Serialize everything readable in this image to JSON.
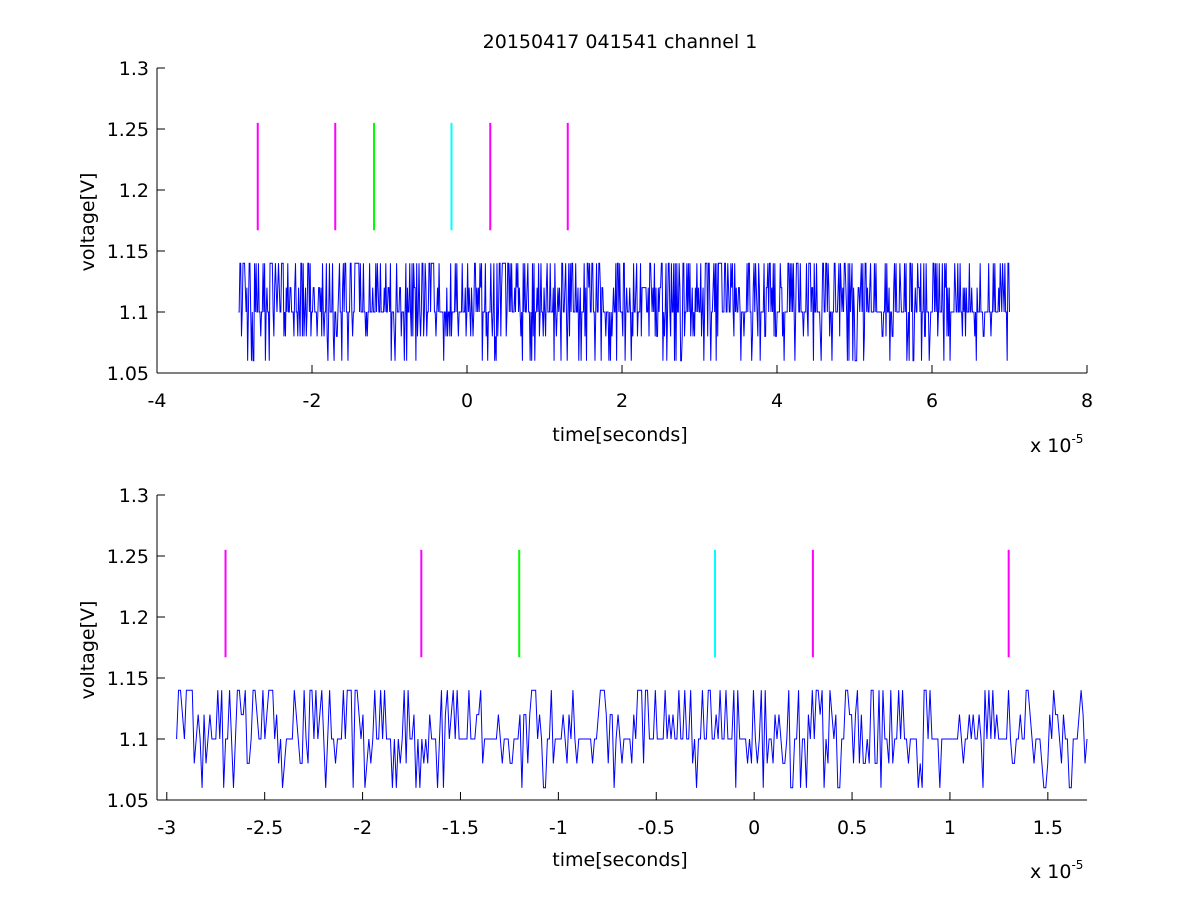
{
  "figure": {
    "title": "20150417 041541 channel 1"
  },
  "chart_data": [
    {
      "type": "line",
      "title": "20150417 041541 channel 1",
      "xlabel": "time[seconds]",
      "ylabel": "voltage[V]",
      "x_exponent_label": "x 10",
      "x_exponent": "-5",
      "xlim": [
        -4,
        8
      ],
      "ylim": [
        1.05,
        1.3
      ],
      "xticks": [
        "-4",
        "-2",
        "0",
        "2",
        "4",
        "6",
        "8"
      ],
      "yticks": [
        "1.05",
        "1.1",
        "1.15",
        "1.2",
        "1.25",
        "1.3"
      ],
      "grid": false,
      "series": [
        {
          "color": "#0000ff",
          "x_range": [
            -2.95,
            7.0
          ],
          "levels": [
            1.06,
            1.08,
            1.1,
            1.12,
            1.14
          ],
          "baseline": 1.1,
          "points_estimated": 1000
        }
      ],
      "markers": [
        {
          "x": -2.7,
          "y": [
            1.167,
            1.255
          ],
          "color": "#ff00ff"
        },
        {
          "x": -1.7,
          "y": [
            1.167,
            1.255
          ],
          "color": "#ff00ff"
        },
        {
          "x": -1.2,
          "y": [
            1.167,
            1.255
          ],
          "color": "#00ff00"
        },
        {
          "x": -0.2,
          "y": [
            1.167,
            1.255
          ],
          "color": "#00ffff"
        },
        {
          "x": 0.3,
          "y": [
            1.167,
            1.255
          ],
          "color": "#ff00ff"
        },
        {
          "x": 1.3,
          "y": [
            1.167,
            1.255
          ],
          "color": "#ff00ff"
        }
      ]
    },
    {
      "type": "line",
      "title": "",
      "xlabel": "time[seconds]",
      "ylabel": "voltage[V]",
      "x_exponent_label": "x 10",
      "x_exponent": "-5",
      "xlim": [
        -3.05,
        1.7
      ],
      "ylim": [
        1.05,
        1.3
      ],
      "xticks": [
        "-3",
        "-2.5",
        "-2",
        "-1.5",
        "-1",
        "-0.5",
        "0",
        "0.5",
        "1",
        "1.5"
      ],
      "yticks": [
        "1.05",
        "1.1",
        "1.15",
        "1.2",
        "1.25",
        "1.3"
      ],
      "grid": false,
      "series": [
        {
          "color": "#0000ff",
          "x_range": [
            -2.95,
            1.7
          ],
          "levels": [
            1.06,
            1.08,
            1.1,
            1.12,
            1.14
          ],
          "baseline": 1.1,
          "points_estimated": 465
        }
      ],
      "markers": [
        {
          "x": -2.7,
          "y": [
            1.167,
            1.255
          ],
          "color": "#ff00ff"
        },
        {
          "x": -1.7,
          "y": [
            1.167,
            1.255
          ],
          "color": "#ff00ff"
        },
        {
          "x": -1.2,
          "y": [
            1.167,
            1.255
          ],
          "color": "#00ff00"
        },
        {
          "x": -0.2,
          "y": [
            1.167,
            1.255
          ],
          "color": "#00ffff"
        },
        {
          "x": 0.3,
          "y": [
            1.167,
            1.255
          ],
          "color": "#ff00ff"
        },
        {
          "x": 1.3,
          "y": [
            1.167,
            1.255
          ],
          "color": "#ff00ff"
        }
      ]
    }
  ]
}
